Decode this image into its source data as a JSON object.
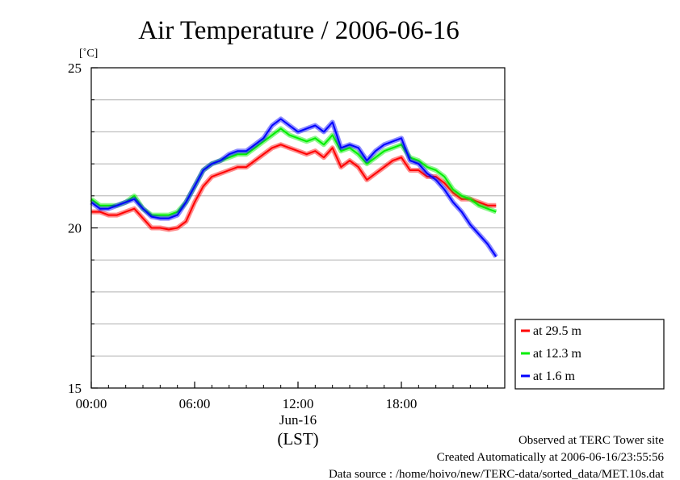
{
  "chart_data": {
    "type": "line",
    "title": "Air Temperature / 2006-06-16",
    "ylabel": "[˚C]",
    "xlabel": "(LST)",
    "date_label": "Jun-16",
    "ylim": [
      15,
      25
    ],
    "xlim": [
      0,
      24
    ],
    "x_ticks": [
      {
        "value": 0,
        "label": "00:00"
      },
      {
        "value": 6,
        "label": "06:00"
      },
      {
        "value": 12,
        "label": "12:00"
      },
      {
        "value": 18,
        "label": "18:00"
      }
    ],
    "y_ticks": [
      {
        "value": 15,
        "label": "15"
      },
      {
        "value": 20,
        "label": "20"
      },
      {
        "value": 25,
        "label": "25"
      }
    ],
    "grid": true,
    "legend_position": "right",
    "x": [
      0,
      0.5,
      1,
      1.5,
      2,
      2.5,
      3,
      3.5,
      4,
      4.5,
      5,
      5.5,
      6,
      6.5,
      7,
      7.5,
      8,
      8.5,
      9,
      9.5,
      10,
      10.5,
      11,
      11.5,
      12,
      12.5,
      13,
      13.5,
      14,
      14.5,
      15,
      15.5,
      16,
      16.5,
      17,
      17.5,
      18,
      18.5,
      19,
      19.5,
      20,
      20.5,
      21,
      21.5,
      22,
      22.5,
      23,
      23.5
    ],
    "series": [
      {
        "name": "at 29.5 m",
        "color": "#ff0000",
        "values": [
          20.5,
          20.5,
          20.4,
          20.4,
          20.5,
          20.6,
          20.3,
          20.0,
          20.0,
          19.95,
          20.0,
          20.2,
          20.8,
          21.3,
          21.6,
          21.7,
          21.8,
          21.9,
          21.9,
          22.1,
          22.3,
          22.5,
          22.6,
          22.5,
          22.4,
          22.3,
          22.4,
          22.2,
          22.5,
          21.9,
          22.1,
          21.9,
          21.5,
          21.7,
          21.9,
          22.1,
          22.2,
          21.8,
          21.8,
          21.6,
          21.6,
          21.4,
          21.1,
          20.9,
          20.9,
          20.8,
          20.7,
          20.7
        ]
      },
      {
        "name": "at 12.3 m",
        "color": "#00ee00",
        "values": [
          20.9,
          20.7,
          20.7,
          20.7,
          20.8,
          21.0,
          20.6,
          20.4,
          20.4,
          20.4,
          20.5,
          20.8,
          21.3,
          21.8,
          22.0,
          22.1,
          22.2,
          22.3,
          22.3,
          22.5,
          22.7,
          22.9,
          23.1,
          22.9,
          22.8,
          22.7,
          22.8,
          22.6,
          22.9,
          22.4,
          22.5,
          22.3,
          22.0,
          22.2,
          22.4,
          22.5,
          22.6,
          22.2,
          22.1,
          21.9,
          21.8,
          21.6,
          21.2,
          21.0,
          20.9,
          20.7,
          20.6,
          20.5
        ]
      },
      {
        "name": "at 1.6 m",
        "color": "#0000ff",
        "values": [
          20.8,
          20.6,
          20.6,
          20.7,
          20.8,
          20.9,
          20.6,
          20.35,
          20.3,
          20.3,
          20.4,
          20.8,
          21.3,
          21.8,
          22.0,
          22.1,
          22.3,
          22.4,
          22.4,
          22.6,
          22.8,
          23.2,
          23.4,
          23.2,
          23.0,
          23.1,
          23.2,
          23.0,
          23.3,
          22.5,
          22.6,
          22.5,
          22.1,
          22.4,
          22.6,
          22.7,
          22.8,
          22.1,
          22.0,
          21.7,
          21.5,
          21.2,
          20.8,
          20.5,
          20.1,
          19.8,
          19.5,
          19.1
        ]
      }
    ]
  },
  "footer": {
    "line1": "Observed at TERC Tower site",
    "line2": "Created Automatically at 2006-06-16/23:55:56",
    "line3": "Data source : /home/hoivo/new/TERC-data/sorted_data/MET.10s.dat"
  }
}
